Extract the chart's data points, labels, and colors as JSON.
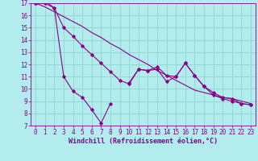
{
  "xlabel": "Windchill (Refroidissement éolien,°C)",
  "background_color": "#b3ecec",
  "grid_color": "#8fd4d4",
  "line_color": "#880088",
  "xlim": [
    -0.5,
    23.5
  ],
  "ylim": [
    7,
    17
  ],
  "yticks": [
    7,
    8,
    9,
    10,
    11,
    12,
    13,
    14,
    15,
    16,
    17
  ],
  "xticks": [
    0,
    1,
    2,
    3,
    4,
    5,
    6,
    7,
    8,
    9,
    10,
    11,
    12,
    13,
    14,
    15,
    16,
    17,
    18,
    19,
    20,
    21,
    22,
    23
  ],
  "line_smooth_x": [
    0,
    1,
    2,
    3,
    4,
    5,
    6,
    7,
    8,
    9,
    10,
    11,
    12,
    13,
    14,
    15,
    16,
    17,
    18,
    19,
    20,
    21,
    22,
    23
  ],
  "line_smooth_y": [
    17.0,
    16.7,
    16.3,
    15.9,
    15.5,
    15.1,
    14.6,
    14.2,
    13.7,
    13.3,
    12.8,
    12.4,
    12.0,
    11.5,
    11.1,
    10.7,
    10.3,
    9.9,
    9.7,
    9.5,
    9.3,
    9.2,
    9.0,
    8.8
  ],
  "line_upper_x": [
    0,
    1,
    2,
    3,
    4,
    5,
    6,
    7,
    8,
    9,
    10,
    11,
    12,
    13,
    14,
    15,
    16,
    17,
    18,
    19,
    20,
    21,
    22,
    23
  ],
  "line_upper_y": [
    17.0,
    17.2,
    16.6,
    15.0,
    14.3,
    13.5,
    12.8,
    12.1,
    11.4,
    10.7,
    10.4,
    11.6,
    11.5,
    11.8,
    11.1,
    11.0,
    12.1,
    11.1,
    10.2,
    9.5,
    9.2,
    9.0,
    8.8,
    8.7
  ],
  "line_lower_x": [
    0,
    1,
    2,
    3,
    4,
    5,
    6,
    7,
    8,
    9,
    10,
    11,
    12,
    13,
    14,
    15,
    16,
    17,
    18,
    19,
    20,
    21,
    22,
    23
  ],
  "line_lower_y": [
    17.0,
    17.0,
    16.6,
    11.0,
    9.8,
    9.3,
    8.3,
    7.2,
    8.8,
    null,
    10.5,
    11.6,
    11.5,
    11.6,
    10.6,
    11.0,
    12.1,
    11.1,
    10.2,
    9.7,
    9.3,
    9.2,
    8.8,
    8.7
  ],
  "marker_style": "D",
  "marker_size": 1.8,
  "line_width": 0.8,
  "xlabel_fontsize": 6.0,
  "tick_fontsize": 5.5
}
